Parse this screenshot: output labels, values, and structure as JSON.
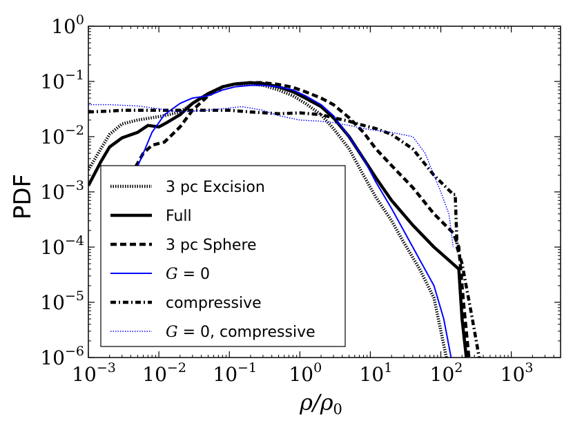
{
  "chart_data": {
    "type": "line",
    "title": "",
    "xlabel": "ρ/ρ0",
    "ylabel": "PDF",
    "xscale": "log",
    "yscale": "log",
    "xlim": [
      0.001,
      5000
    ],
    "ylim": [
      1e-06,
      1
    ],
    "xticks": [
      {
        "base": "10",
        "exp": "−3",
        "value": 0.001
      },
      {
        "base": "10",
        "exp": "−2",
        "value": 0.01
      },
      {
        "base": "10",
        "exp": "−1",
        "value": 0.1
      },
      {
        "base": "10",
        "exp": "0",
        "value": 1
      },
      {
        "base": "10",
        "exp": "1",
        "value": 10
      },
      {
        "base": "10",
        "exp": "2",
        "value": 100
      },
      {
        "base": "10",
        "exp": "3",
        "value": 1000
      }
    ],
    "yticks": [
      {
        "base": "10",
        "exp": "−6",
        "value": 1e-06
      },
      {
        "base": "10",
        "exp": "−5",
        "value": 1e-05
      },
      {
        "base": "10",
        "exp": "−4",
        "value": 0.0001
      },
      {
        "base": "10",
        "exp": "−3",
        "value": 0.001
      },
      {
        "base": "10",
        "exp": "−2",
        "value": 0.01
      },
      {
        "base": "10",
        "exp": "−1",
        "value": 0.1
      },
      {
        "base": "10",
        "exp": "0",
        "value": 1
      }
    ],
    "legend": {
      "position": "lower-left"
    },
    "series": [
      {
        "name": "3 pc Excision",
        "style": "dotted-thick",
        "color": "#000000",
        "x": [
          0.001,
          0.0015,
          0.002,
          0.003,
          0.005,
          0.008,
          0.012,
          0.02,
          0.03,
          0.05,
          0.08,
          0.12,
          0.2,
          0.3,
          0.5,
          0.8,
          1.2,
          2,
          3,
          5,
          8,
          12,
          20,
          30,
          50,
          80,
          120
        ],
        "y": [
          0.0025,
          0.006,
          0.011,
          0.017,
          0.02,
          0.022,
          0.024,
          0.028,
          0.04,
          0.06,
          0.08,
          0.09,
          0.09,
          0.085,
          0.07,
          0.055,
          0.04,
          0.025,
          0.014,
          0.006,
          0.002,
          0.0008,
          0.0003,
          0.00012,
          4e-05,
          1.2e-05,
          1e-06
        ]
      },
      {
        "name": "Full",
        "style": "solid-thick",
        "color": "#000000",
        "x": [
          0.001,
          0.0015,
          0.002,
          0.003,
          0.005,
          0.007,
          0.01,
          0.013,
          0.02,
          0.03,
          0.05,
          0.08,
          0.12,
          0.2,
          0.3,
          0.5,
          0.8,
          1.2,
          2,
          3,
          5,
          8,
          12,
          20,
          40,
          80,
          180,
          200,
          230
        ],
        "y": [
          0.0013,
          0.0035,
          0.0065,
          0.0095,
          0.012,
          0.016,
          0.015,
          0.018,
          0.025,
          0.04,
          0.06,
          0.08,
          0.09,
          0.095,
          0.092,
          0.08,
          0.065,
          0.05,
          0.035,
          0.022,
          0.01,
          0.004,
          0.0018,
          0.0007,
          0.00025,
          0.0001,
          4e-05,
          5e-06,
          1e-06
        ]
      },
      {
        "name": "3 pc Sphere",
        "style": "dashed-thick",
        "color": "#000000",
        "x": [
          0.004,
          0.006,
          0.008,
          0.012,
          0.02,
          0.03,
          0.05,
          0.08,
          0.12,
          0.2,
          0.3,
          0.5,
          0.8,
          1.2,
          2,
          3,
          5,
          8,
          12,
          20,
          40,
          80,
          150,
          180,
          210,
          250
        ],
        "y": [
          0.002,
          0.005,
          0.007,
          0.008,
          0.015,
          0.03,
          0.055,
          0.08,
          0.09,
          0.095,
          0.095,
          0.088,
          0.078,
          0.065,
          0.05,
          0.038,
          0.022,
          0.012,
          0.006,
          0.003,
          0.0012,
          0.0004,
          0.00018,
          0.0001,
          1e-05,
          1e-06
        ]
      },
      {
        "name": "G = 0",
        "name_italic": "G",
        "name_rest": " = 0",
        "style": "solid-thin",
        "color": "#0000ff",
        "x": [
          0.0028,
          0.004,
          0.006,
          0.008,
          0.012,
          0.02,
          0.03,
          0.05,
          0.08,
          0.12,
          0.2,
          0.3,
          0.5,
          0.8,
          1.2,
          2,
          3,
          5,
          8,
          12,
          20,
          40,
          80,
          110,
          140
        ],
        "y": [
          8e-05,
          0.0015,
          0.005,
          0.012,
          0.025,
          0.04,
          0.05,
          0.055,
          0.07,
          0.08,
          0.085,
          0.085,
          0.08,
          0.07,
          0.055,
          0.038,
          0.024,
          0.01,
          0.004,
          0.0015,
          0.0005,
          0.0001,
          2e-05,
          5e-06,
          1e-06
        ]
      },
      {
        "name": "compressive",
        "style": "dashdot-thick",
        "color": "#000000",
        "x": [
          0.001,
          0.002,
          0.003,
          0.005,
          0.01,
          0.02,
          0.05,
          0.1,
          0.2,
          0.5,
          1,
          2,
          3,
          5,
          8,
          12,
          20,
          40,
          80,
          150,
          160,
          170,
          200,
          280,
          350
        ],
        "y": [
          0.028,
          0.029,
          0.03,
          0.03,
          0.03,
          0.03,
          0.03,
          0.03,
          0.028,
          0.026,
          0.027,
          0.025,
          0.022,
          0.019,
          0.016,
          0.014,
          0.011,
          0.006,
          0.002,
          0.0009,
          0.0009,
          0.0001,
          5e-05,
          5e-06,
          1e-06
        ]
      },
      {
        "name": "G = 0, compressive",
        "name_italic": "G",
        "name_rest": " = 0, compressive",
        "style": "dotted-thin",
        "color": "#0000ff",
        "x": [
          0.001,
          0.002,
          0.003,
          0.005,
          0.01,
          0.02,
          0.05,
          0.1,
          0.15,
          0.2,
          0.3,
          0.5,
          1,
          2,
          3,
          5,
          8,
          12,
          20,
          40,
          60,
          80,
          100,
          130,
          150
        ],
        "y": [
          0.038,
          0.038,
          0.037,
          0.036,
          0.032,
          0.028,
          0.03,
          0.033,
          0.035,
          0.033,
          0.03,
          0.024,
          0.02,
          0.019,
          0.018,
          0.016,
          0.014,
          0.013,
          0.012,
          0.01,
          0.005,
          0.002,
          0.001,
          0.0004,
          0.0001
        ]
      }
    ]
  }
}
